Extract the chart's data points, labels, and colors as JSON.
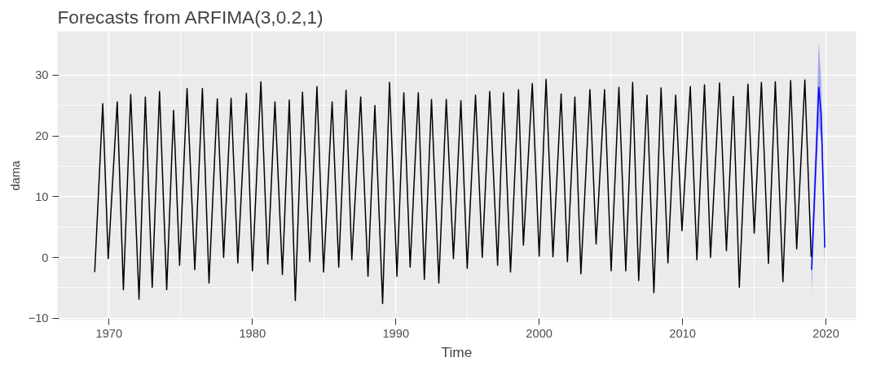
{
  "chart_data": {
    "type": "line",
    "title": "Forecasts from ARFIMA(3,0.2,1)",
    "xlabel": "Time",
    "ylabel": "dama",
    "xlim": [
      1966.4,
      2022.1
    ],
    "ylim": [
      -10.3,
      37.2
    ],
    "xticks": [
      1970,
      1980,
      1990,
      2000,
      2010,
      2020
    ],
    "yticks": [
      -10,
      0,
      10,
      20,
      30
    ],
    "grid": true,
    "line_style": "solid",
    "marker": "none",
    "series": [
      {
        "color": "#000000",
        "x": [
          1969.0,
          1969.56,
          1969.94,
          1970.57,
          1971.0,
          1971.51,
          1972.09,
          1972.53,
          1973.01,
          1973.52,
          1974.02,
          1974.5,
          1974.92,
          1975.44,
          1975.98,
          1976.51,
          1976.97,
          1977.55,
          1977.99,
          1978.51,
          1978.98,
          1979.58,
          1980.0,
          1980.59,
          1981.07,
          1981.57,
          1982.09,
          1982.57,
          1982.99,
          1983.49,
          1984.0,
          1984.5,
          1984.96,
          1985.56,
          1986.02,
          1986.53,
          1986.93,
          1987.55,
          1988.06,
          1988.54,
          1989.08,
          1989.56,
          1990.08,
          1990.56,
          1991.0,
          1991.57,
          1991.99,
          1992.49,
          1993.0,
          1993.52,
          1994.02,
          1994.54,
          1994.98,
          1995.56,
          1996.03,
          1996.55,
          1997.1,
          1997.51,
          1998.0,
          1998.56,
          1998.9,
          1999.52,
          2000.0,
          2000.48,
          2000.96,
          2001.53,
          2001.97,
          2002.49,
          2002.91,
          2003.54,
          2003.97,
          2004.56,
          2005.02,
          2005.56,
          2006.04,
          2006.52,
          2006.94,
          2007.52,
          2008.0,
          2008.5,
          2008.98,
          2009.52,
          2009.96,
          2010.54,
          2011.0,
          2011.53,
          2011.95,
          2012.58,
          2013.06,
          2013.54,
          2013.96,
          2014.56,
          2015.0,
          2015.5,
          2015.99,
          2016.47,
          2017.0,
          2017.54,
          2017.96,
          2018.53,
          2018.97
        ],
        "values": [
          -2.4,
          25.3,
          -0.2,
          25.6,
          -5.3,
          26.8,
          -6.9,
          26.4,
          -4.9,
          27.3,
          -5.3,
          24.2,
          -1.3,
          27.8,
          -2.0,
          27.8,
          -4.2,
          26.1,
          0.0,
          26.2,
          -0.9,
          27.0,
          -2.2,
          28.9,
          -1.1,
          25.6,
          -2.8,
          25.9,
          -7.1,
          27.2,
          -0.7,
          28.1,
          -2.4,
          25.6,
          -1.6,
          27.5,
          -0.4,
          26.4,
          -3.1,
          25.0,
          -7.6,
          28.8,
          -3.1,
          27.1,
          -1.6,
          27.1,
          -3.6,
          26.0,
          -4.2,
          26.0,
          -0.2,
          25.8,
          -1.8,
          26.7,
          0.0,
          27.3,
          -1.3,
          27.1,
          -2.4,
          27.6,
          2.0,
          28.6,
          0.2,
          29.3,
          0.1,
          26.9,
          -0.7,
          26.4,
          -2.7,
          27.6,
          2.2,
          27.6,
          -2.2,
          28.0,
          -2.2,
          28.8,
          -3.8,
          26.7,
          -5.8,
          27.9,
          -0.9,
          26.7,
          4.4,
          28.1,
          -0.4,
          28.4,
          0.0,
          28.7,
          1.1,
          26.5,
          -4.9,
          28.5,
          4.0,
          28.8,
          -1.0,
          28.9,
          -4.0,
          29.1,
          1.4,
          29.2,
          0.1
        ]
      },
      {
        "color": "#0000ff",
        "x": [
          2019.0,
          2019.17,
          2019.33,
          2019.5,
          2019.67,
          2019.83,
          2019.92
        ],
        "values": [
          -2.0,
          8.0,
          17.5,
          28.0,
          23.5,
          10.0,
          1.6
        ],
        "lower": [
          -6.2,
          4.0,
          13.0,
          22.0,
          19.0,
          6.0,
          -2.0
        ],
        "upper": [
          1.5,
          12.0,
          22.0,
          35.5,
          29.0,
          14.0,
          4.0
        ]
      }
    ]
  }
}
